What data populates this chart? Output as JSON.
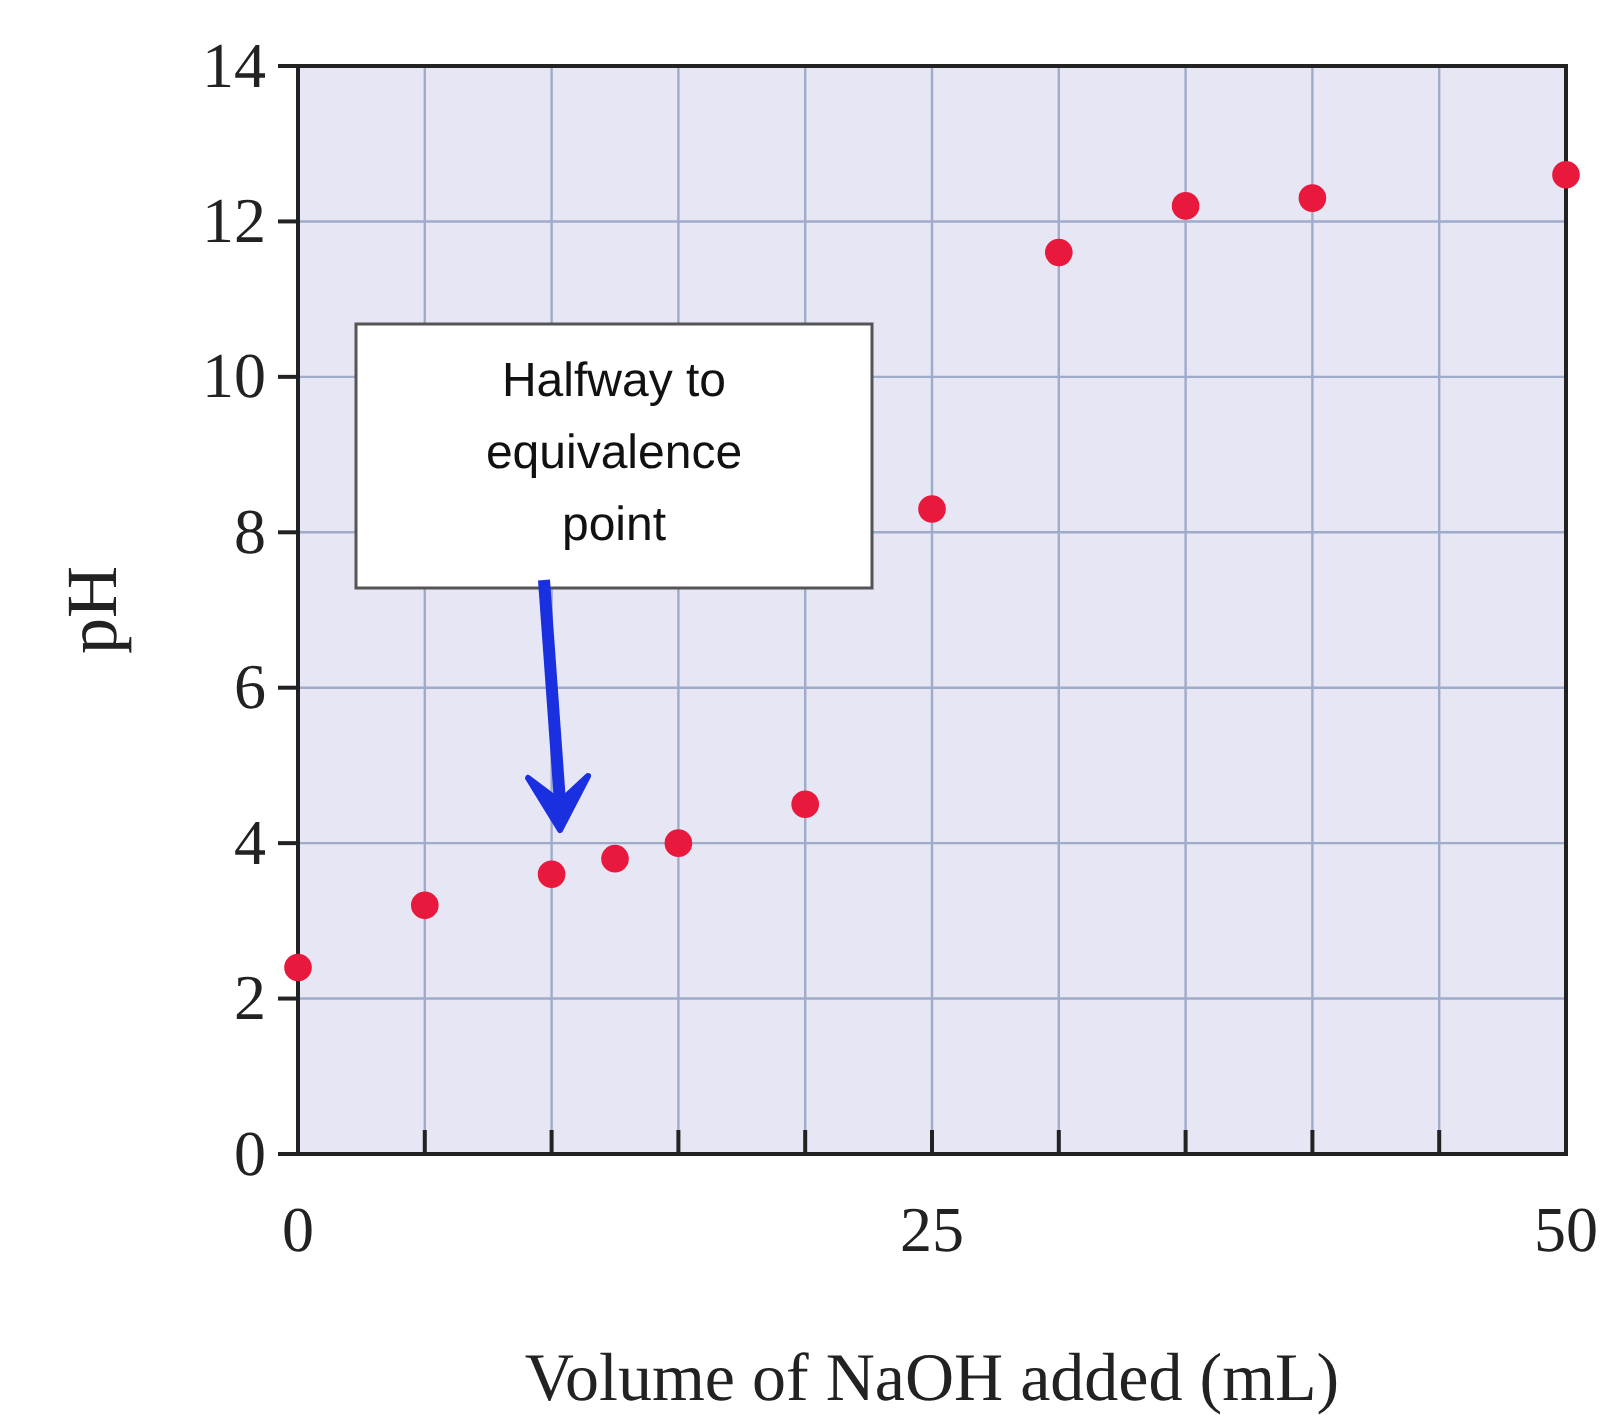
{
  "chart_data": {
    "type": "scatter",
    "xlabel": "Volume of NaOH added (mL)",
    "ylabel": "pH",
    "x": [
      0,
      5,
      10,
      12.5,
      15,
      20,
      25,
      30,
      35,
      40,
      50
    ],
    "values": [
      2.4,
      3.2,
      3.6,
      3.8,
      4.0,
      4.5,
      8.3,
      11.6,
      12.2,
      12.3,
      12.6
    ],
    "color": "#e8193c",
    "marker": "circle",
    "grid": true,
    "xlim": [
      0,
      50
    ],
    "xticks": [
      0,
      {
        "value": 5,
        "label": null
      },
      {
        "value": 10,
        "label": null
      },
      {
        "value": 15,
        "label": null
      },
      {
        "value": 20,
        "label": null
      },
      25,
      {
        "value": 30,
        "label": null
      },
      {
        "value": 35,
        "label": null
      },
      {
        "value": 40,
        "label": null
      },
      {
        "value": 45,
        "label": null
      },
      50
    ],
    "ylim": [
      0,
      14
    ],
    "yticks": [
      0,
      2,
      4,
      6,
      8,
      10,
      12,
      14
    ],
    "annotations": [
      "Halfway to\nequivalence\npoint"
    ]
  }
}
